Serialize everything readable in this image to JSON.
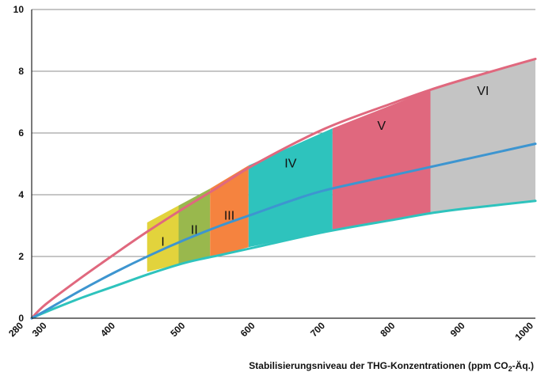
{
  "chart_data": {
    "type": "area",
    "title": "",
    "xlabel_main": "Stabilisierungsniveau der THG-Konzentrationen (ppm CO",
    "xlabel_sub": "2",
    "xlabel_end": "-Äq.)",
    "ylabel": "",
    "xlim": [
      280,
      1000
    ],
    "ylim": [
      0,
      10
    ],
    "x_ticks": [
      "280",
      "300",
      "400",
      "500",
      "600",
      "700",
      "800",
      "900",
      "1000"
    ],
    "y_ticks": [
      "0",
      "2",
      "4",
      "6",
      "8",
      "10"
    ],
    "grid": "horizontal",
    "colors": {
      "upper": "#e0687e",
      "middle": "#3d95d0",
      "lower": "#2ec3bd",
      "axis": "#222222",
      "grid": "#8c8c8c"
    },
    "series": [
      {
        "key": "upper",
        "x": [
          280,
          300,
          350,
          400,
          445,
          500,
          540,
          600,
          700,
          800,
          850,
          900,
          1000
        ],
        "values": [
          0,
          0.45,
          1.3,
          2.1,
          2.8,
          3.6,
          4.15,
          5.0,
          6.15,
          7.0,
          7.4,
          7.75,
          8.4
        ]
      },
      {
        "key": "middle",
        "x": [
          280,
          300,
          350,
          400,
          450,
          500,
          550,
          600,
          650,
          700,
          800,
          900,
          1000
        ],
        "values": [
          0,
          0.25,
          0.9,
          1.5,
          2.05,
          2.55,
          3.0,
          3.4,
          3.8,
          4.15,
          4.65,
          5.15,
          5.65
        ]
      },
      {
        "key": "lower",
        "x": [
          280,
          300,
          350,
          400,
          450,
          500,
          550,
          600,
          700,
          800,
          850,
          900,
          1000
        ],
        "values": [
          0,
          0.2,
          0.65,
          1.05,
          1.45,
          1.8,
          2.05,
          2.3,
          2.8,
          3.2,
          3.4,
          3.55,
          3.8
        ]
      }
    ],
    "bands": [
      {
        "label": "I",
        "x0": 445,
        "x1": 490,
        "top": [
          3.1,
          3.65
        ],
        "bottom": [
          1.5,
          1.75
        ],
        "color": "#e2d33c"
      },
      {
        "label": "II",
        "x0": 490,
        "x1": 535,
        "top": [
          3.65,
          4.2
        ],
        "bottom": [
          1.75,
          1.95
        ],
        "color": "#99b84d"
      },
      {
        "label": "III",
        "x0": 535,
        "x1": 590,
        "top": [
          4.2,
          4.95
        ],
        "bottom": [
          1.95,
          2.3
        ],
        "color": "#f5833f"
      },
      {
        "label": "IV",
        "x0": 590,
        "x1": 710,
        "top": [
          4.95,
          6.15
        ],
        "bottom": [
          2.3,
          2.85
        ],
        "color": "#2ec3bd"
      },
      {
        "label": "V",
        "x0": 710,
        "x1": 850,
        "top": [
          6.15,
          7.4
        ],
        "bottom": [
          2.85,
          3.4
        ],
        "color": "#e0687e"
      },
      {
        "label": "VI",
        "x0": 850,
        "x1": 1000,
        "top": [
          7.4,
          8.4
        ],
        "bottom": [
          3.4,
          3.8
        ],
        "color": "#c4c4c4"
      }
    ]
  }
}
